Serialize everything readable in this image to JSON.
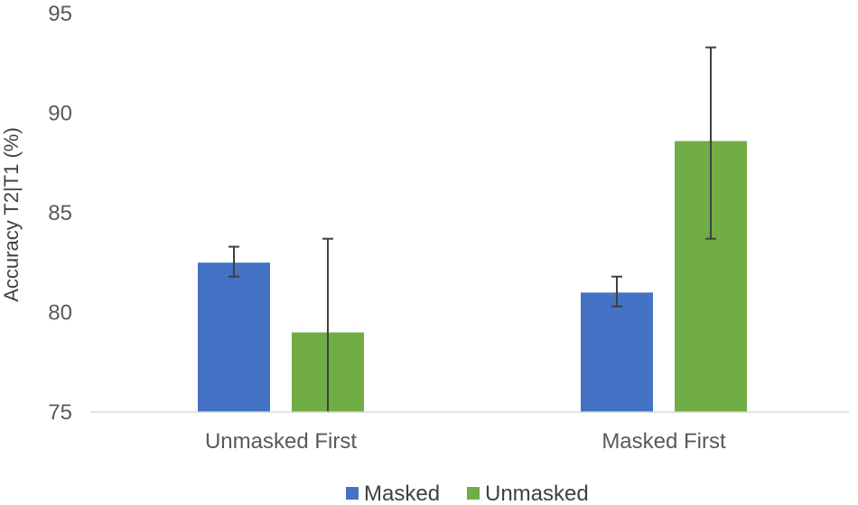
{
  "chart_data": {
    "type": "bar",
    "title": "",
    "xlabel": "",
    "ylabel": "Accuracy T2|T1 (%)",
    "categories": [
      "Unmasked First",
      "Masked First"
    ],
    "ylim": [
      75,
      95
    ],
    "yticks": [
      75,
      80,
      85,
      90,
      95
    ],
    "grid": false,
    "legend_position": "bottom",
    "series": [
      {
        "name": "Masked",
        "color": "#4472C4",
        "values": [
          82.5,
          81.0
        ],
        "error_low": [
          81.8,
          80.3
        ],
        "error_high": [
          83.3,
          81.8
        ]
      },
      {
        "name": "Unmasked",
        "color": "#70AD47",
        "values": [
          79.0,
          88.6
        ],
        "error_low": [
          74.2,
          83.7
        ],
        "error_high": [
          83.7,
          93.3
        ]
      }
    ]
  }
}
